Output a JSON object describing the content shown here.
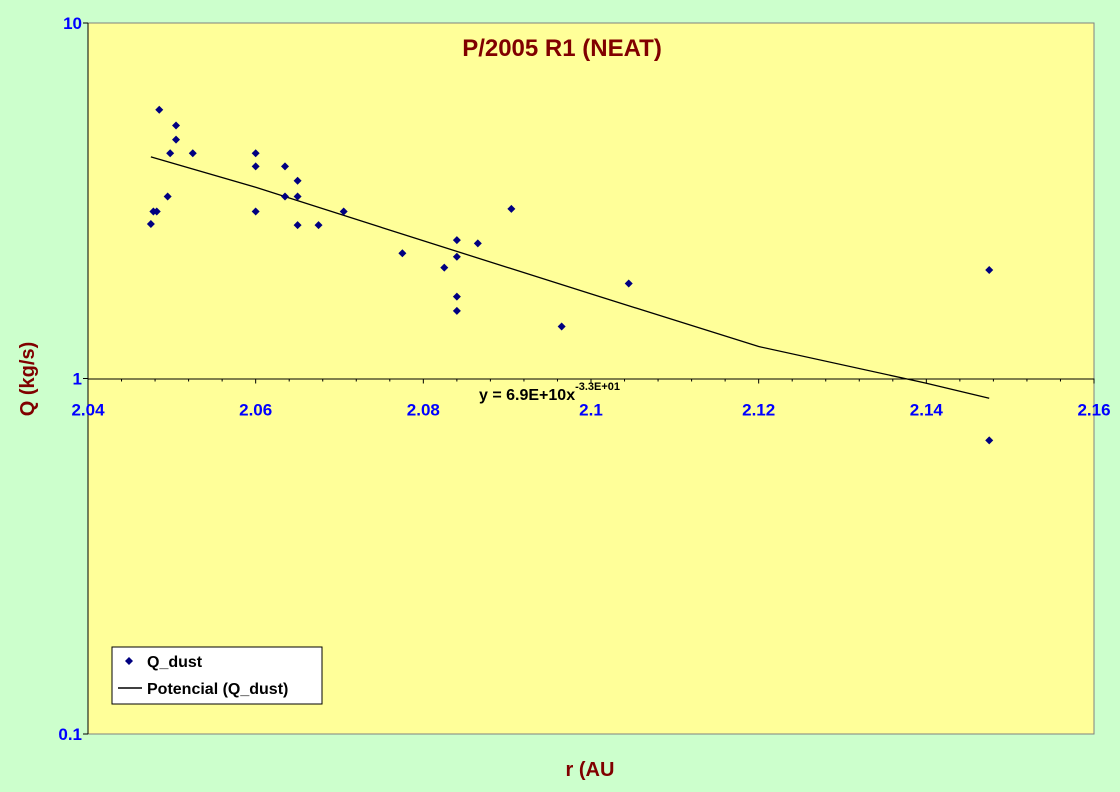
{
  "colors": {
    "page_background": "#ccffcc",
    "plot_background": "#ffff99",
    "title_color": "#800000",
    "tick_color": "#0000ff",
    "marker_color": "#000080",
    "trend_color": "#000000"
  },
  "chart_data": {
    "type": "scatter",
    "title": "P/2005 R1 (NEAT)",
    "xlabel": "r (AU",
    "ylabel": "Q (kg/s)",
    "xlim": [
      2.04,
      2.16
    ],
    "ylim": [
      0.1,
      10
    ],
    "y_scale": "log",
    "grid": false,
    "legend_position": "bottom-left",
    "x_ticks": [
      "2.04",
      "2.06",
      "2.08",
      "2.1",
      "2.12",
      "2.14",
      "2.16"
    ],
    "y_ticks": [
      "0.1",
      "1",
      "10"
    ],
    "series": [
      {
        "name": "Q_dust",
        "marker": "diamond",
        "points": [
          [
            2.0475,
            2.72
          ],
          [
            2.0478,
            2.95
          ],
          [
            2.0482,
            2.95
          ],
          [
            2.0485,
            5.7
          ],
          [
            2.0495,
            3.25
          ],
          [
            2.0498,
            4.3
          ],
          [
            2.0505,
            5.15
          ],
          [
            2.0505,
            4.7
          ],
          [
            2.0525,
            4.3
          ],
          [
            2.06,
            4.3
          ],
          [
            2.06,
            3.95
          ],
          [
            2.06,
            2.95
          ],
          [
            2.0635,
            3.95
          ],
          [
            2.0635,
            3.25
          ],
          [
            2.065,
            3.6
          ],
          [
            2.065,
            3.25
          ],
          [
            2.065,
            2.7
          ],
          [
            2.0675,
            2.7
          ],
          [
            2.0705,
            2.95
          ],
          [
            2.0775,
            2.25
          ],
          [
            2.0825,
            2.05
          ],
          [
            2.084,
            2.45
          ],
          [
            2.084,
            2.2
          ],
          [
            2.084,
            1.7
          ],
          [
            2.084,
            1.55
          ],
          [
            2.0865,
            2.4
          ],
          [
            2.0905,
            3.0
          ],
          [
            2.0965,
            1.4
          ],
          [
            2.1045,
            1.85
          ],
          [
            2.1475,
            2.02
          ],
          [
            2.1475,
            0.67
          ]
        ]
      },
      {
        "name": "Potencial (Q_dust)",
        "type": "line",
        "x": [
          2.0475,
          2.06,
          2.08,
          2.1,
          2.12,
          2.14,
          2.1475
        ],
        "y": [
          4.2,
          3.45,
          2.44,
          1.73,
          1.23,
          0.97,
          0.88
        ]
      }
    ],
    "annotation": {
      "text": "y = 6.9E+10x",
      "superscript": "-3.3E+01"
    }
  }
}
